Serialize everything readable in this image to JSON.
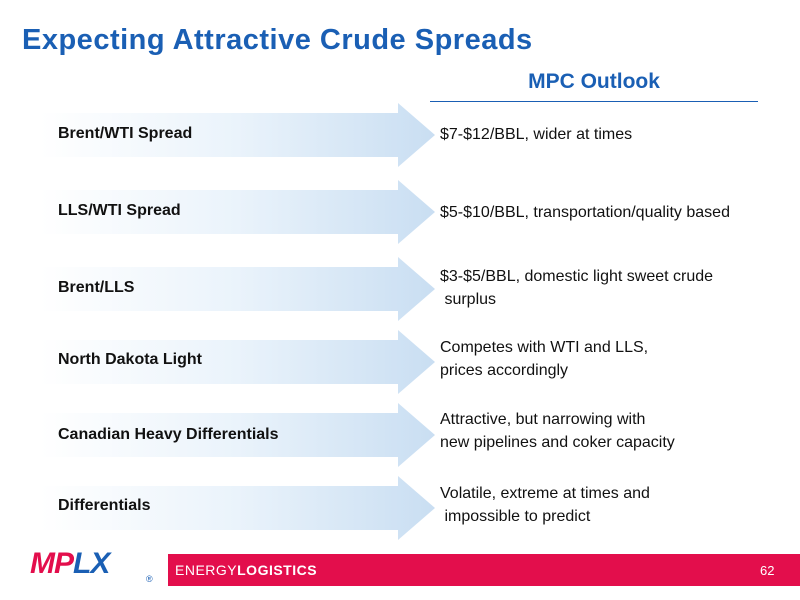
{
  "title": "Expecting Attractive Crude Spreads",
  "outlook_header": "MPC Outlook",
  "rows": [
    {
      "label": "Brent/WTI Spread",
      "desc": "$7-$12/BBL, wider at times"
    },
    {
      "label": "LLS/WTI Spread",
      "desc": "$5-$10/BBL, transportation/quality based"
    },
    {
      "label": "Brent/LLS",
      "desc": "$3-$5/BBL, domestic light sweet crude\n surplus"
    },
    {
      "label": "North Dakota Light",
      "desc": "Competes with WTI and LLS,\nprices accordingly"
    },
    {
      "label": "Canadian Heavy Differentials",
      "desc": "Attractive, but narrowing with\nnew pipelines and coker capacity"
    },
    {
      "label": "Differentials",
      "desc": "Volatile, extreme at times and\n impossible to predict"
    }
  ],
  "footer": {
    "logo_mp": "MP",
    "logo_lx": "LX",
    "reg_mark": "®",
    "energy_light": "ENERGY",
    "energy_bold": "LOGISTICS",
    "page_number": "62"
  },
  "colors": {
    "title_blue": "#1a5fb4",
    "brand_red": "#e30e4c",
    "arrow_light": "#eaf3fb",
    "arrow_dark": "#cfe2f3"
  }
}
